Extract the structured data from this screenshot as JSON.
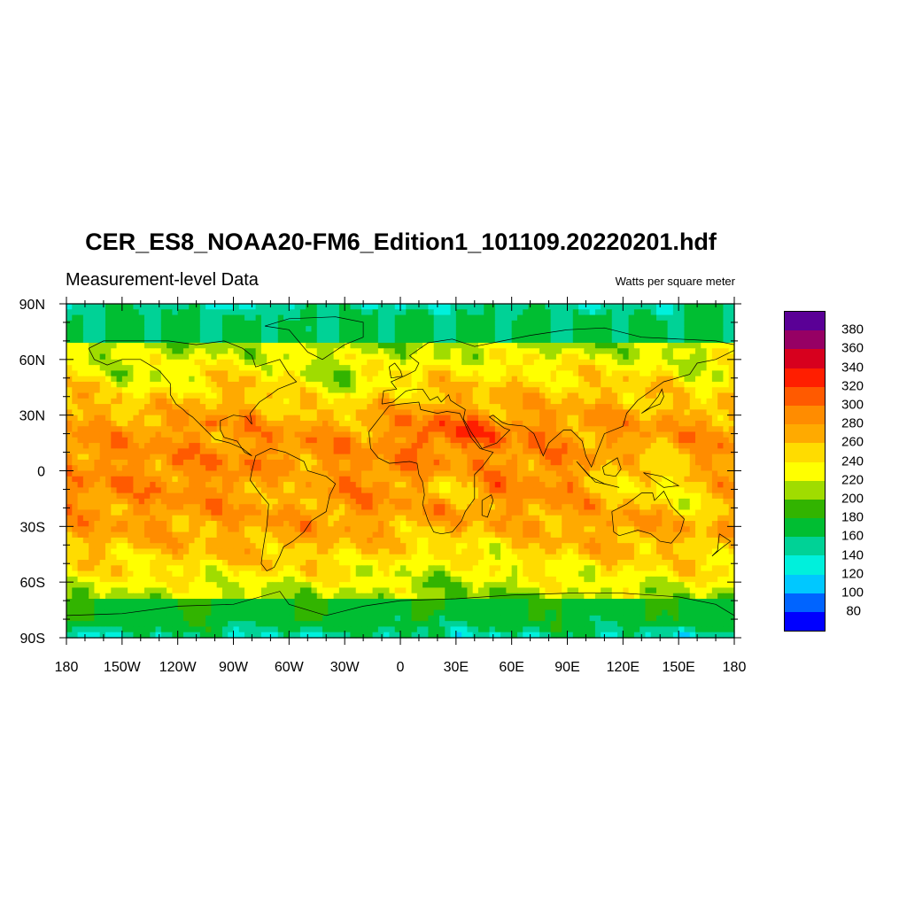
{
  "title": "CER_ES8_NOAA20-FM6_Edition1_101109.20220201.hdf",
  "subtitle": "Measurement-level Data",
  "units": "Watts per square meter",
  "x_ticks": [
    "180",
    "150W",
    "120W",
    "90W",
    "60W",
    "30W",
    "0",
    "30E",
    "60E",
    "90E",
    "120E",
    "150E",
    "180"
  ],
  "y_ticks": [
    "90N",
    "60N",
    "30N",
    "0",
    "30S",
    "60S",
    "90S"
  ],
  "legend": {
    "colors": [
      "#5a0096",
      "#960064",
      "#d7001e",
      "#ff1e00",
      "#ff5a00",
      "#ff8c00",
      "#ffaa00",
      "#ffdc00",
      "#ffff00",
      "#a0dc00",
      "#32b400",
      "#00be32",
      "#00d296",
      "#00f0dc",
      "#00c8ff",
      "#0064ff",
      "#0000ff"
    ],
    "labels": [
      "380",
      "360",
      "340",
      "320",
      "300",
      "280",
      "260",
      "240",
      "220",
      "200",
      "180",
      "160",
      "140",
      "120",
      "100",
      "80"
    ]
  },
  "chart_data": {
    "type": "heatmap",
    "title": "CER_ES8_NOAA20-FM6_Edition1_101109.20220201.hdf",
    "subtitle": "Measurement-level Data",
    "units": "Watts per square meter",
    "xlim": [
      -180,
      180
    ],
    "ylim": [
      -90,
      90
    ],
    "levels": [
      80,
      100,
      120,
      140,
      160,
      180,
      200,
      220,
      240,
      260,
      280,
      300,
      320,
      340,
      360,
      380
    ]
  }
}
